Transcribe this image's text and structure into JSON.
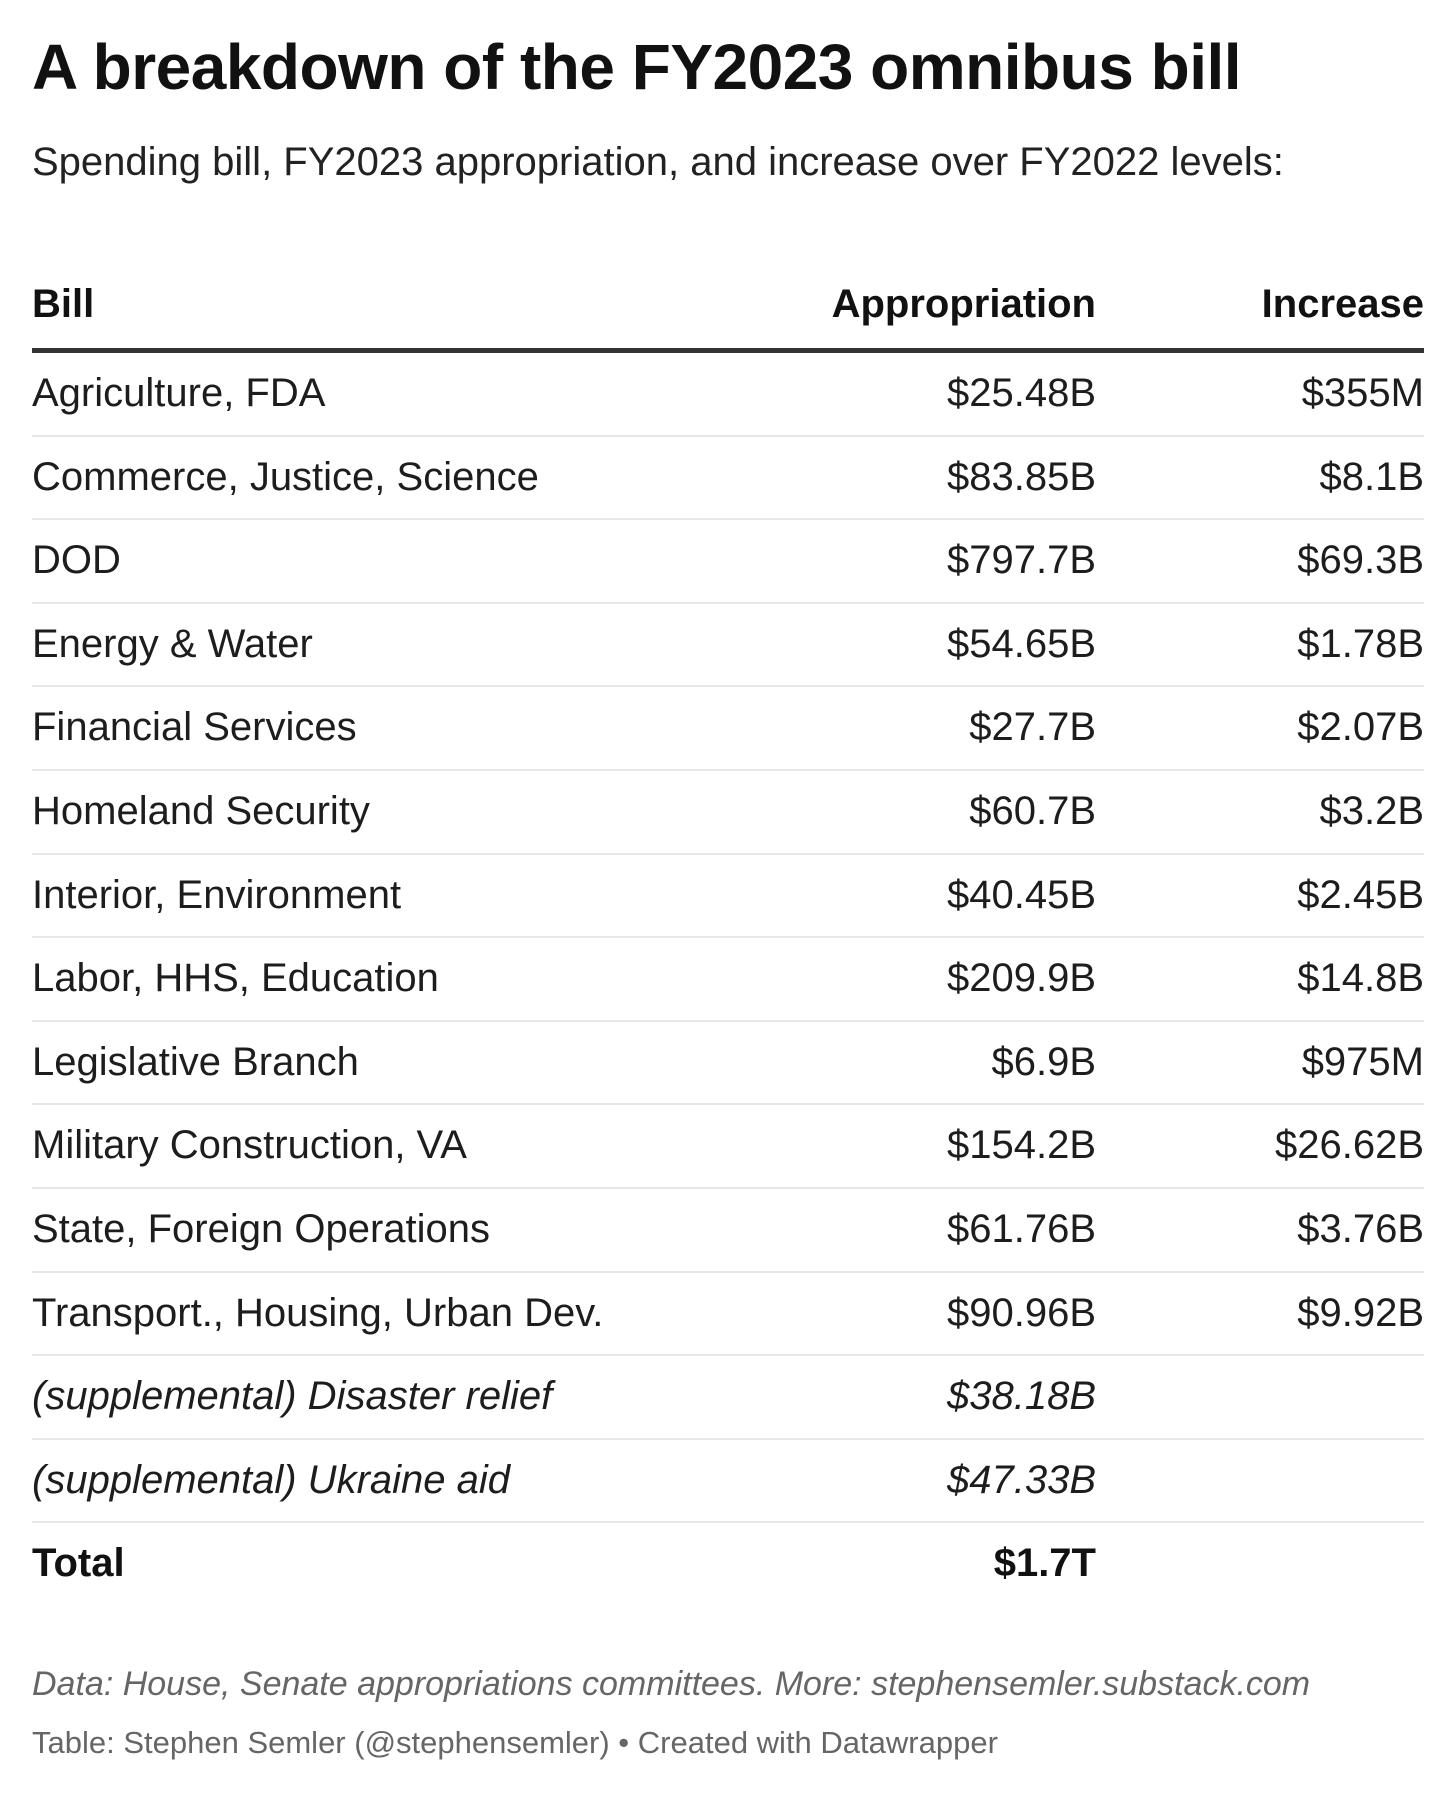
{
  "header": {
    "title": "A breakdown of the FY2023 omnibus bill",
    "subtitle": "Spending bill, FY2023 appropriation, and increase over FY2022 levels:"
  },
  "chart_data": {
    "type": "table",
    "columns": [
      "Bill",
      "Appropriation",
      "Increase"
    ],
    "rows": [
      {
        "bill": "Agriculture, FDA",
        "appropriation": "$25.48B",
        "increase": "$355M",
        "style": "normal"
      },
      {
        "bill": "Commerce, Justice, Science",
        "appropriation": "$83.85B",
        "increase": "$8.1B",
        "style": "normal"
      },
      {
        "bill": "DOD",
        "appropriation": "$797.7B",
        "increase": "$69.3B",
        "style": "normal"
      },
      {
        "bill": "Energy & Water",
        "appropriation": "$54.65B",
        "increase": "$1.78B",
        "style": "normal"
      },
      {
        "bill": "Financial Services",
        "appropriation": "$27.7B",
        "increase": "$2.07B",
        "style": "normal"
      },
      {
        "bill": "Homeland Security",
        "appropriation": "$60.7B",
        "increase": "$3.2B",
        "style": "normal"
      },
      {
        "bill": "Interior, Environment",
        "appropriation": "$40.45B",
        "increase": "$2.45B",
        "style": "normal"
      },
      {
        "bill": "Labor, HHS, Education",
        "appropriation": "$209.9B",
        "increase": "$14.8B",
        "style": "normal"
      },
      {
        "bill": "Legislative Branch",
        "appropriation": "$6.9B",
        "increase": "$975M",
        "style": "normal"
      },
      {
        "bill": "Military Construction, VA",
        "appropriation": "$154.2B",
        "increase": "$26.62B",
        "style": "normal"
      },
      {
        "bill": "State, Foreign Operations",
        "appropriation": "$61.76B",
        "increase": "$3.76B",
        "style": "normal"
      },
      {
        "bill": "Transport., Housing, Urban Dev.",
        "appropriation": "$90.96B",
        "increase": "$9.92B",
        "style": "normal"
      },
      {
        "bill": "(supplemental) Disaster relief",
        "appropriation": "$38.18B",
        "increase": "",
        "style": "italic"
      },
      {
        "bill": "(supplemental) Ukraine aid",
        "appropriation": "$47.33B",
        "increase": "",
        "style": "italic"
      },
      {
        "bill": "Total",
        "appropriation": "$1.7T",
        "increase": "",
        "style": "total"
      }
    ]
  },
  "footer": {
    "notes": "Data: House, Senate appropriations committees. More: stephensemler.substack.com",
    "byline": "Table: Stephen Semler (@stephensemler) • Created with Datawrapper"
  }
}
